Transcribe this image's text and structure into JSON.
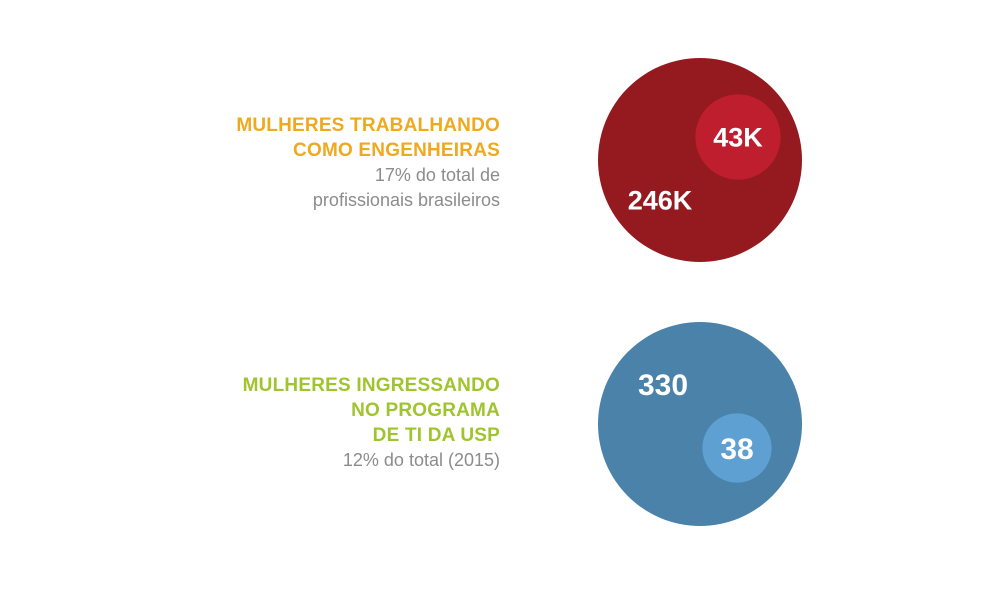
{
  "chart_data": [
    {
      "type": "bubble",
      "title_lines": [
        "MULHERES TRABALHANDO",
        "COMO ENGENHEIRAS"
      ],
      "subtitle_lines": [
        "17% do total de",
        "profissionais brasileiros"
      ],
      "title_color": "#efa91f",
      "total": {
        "value": 246000,
        "label": "246K",
        "color": "#941a20"
      },
      "part": {
        "value": 43000,
        "label": "43K",
        "color": "#be1e2d"
      }
    },
    {
      "type": "bubble",
      "title_lines": [
        "MULHERES INGRESSANDO",
        "NO PROGRAMA",
        "DE TI DA USP"
      ],
      "subtitle_lines": [
        "12% do total (2015)"
      ],
      "title_color": "#9fc42e",
      "total": {
        "value": 330,
        "label": "330",
        "color": "#4a82aa"
      },
      "part": {
        "value": 38,
        "label": "38",
        "color": "#5fa0d2"
      }
    }
  ]
}
